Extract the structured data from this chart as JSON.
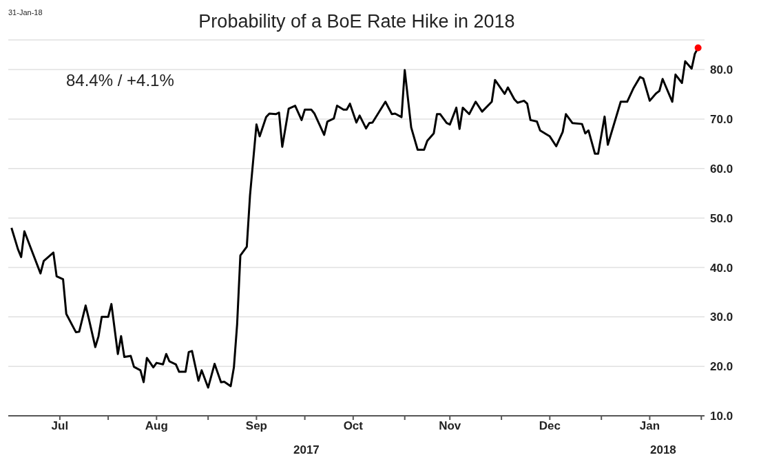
{
  "chart_data": {
    "type": "line",
    "title": "Probability of a BoE Rate Hike in 2018",
    "annotations": [
      "31-Jan-18",
      "84.4% / +4.1%",
      "2017",
      "2018"
    ],
    "xlim": [
      "2017-07-01",
      "2018-02-02"
    ],
    "xticks": [
      {
        "value": "2017-07-17",
        "label": "Jul"
      },
      {
        "value": "2017-08-01",
        "label": null
      },
      {
        "value": "2017-08-16",
        "label": "Aug"
      },
      {
        "value": "2017-09-01",
        "label": null
      },
      {
        "value": "2017-09-16",
        "label": "Sep"
      },
      {
        "value": "2017-10-01",
        "label": null
      },
      {
        "value": "2017-10-16",
        "label": "Oct"
      },
      {
        "value": "2017-11-01",
        "label": null
      },
      {
        "value": "2017-11-15",
        "label": "Nov"
      },
      {
        "value": "2017-12-01",
        "label": null
      },
      {
        "value": "2017-12-16",
        "label": "Dec"
      },
      {
        "value": "2018-01-01",
        "label": null
      },
      {
        "value": "2018-01-16",
        "label": "Jan"
      },
      {
        "value": "2018-02-01",
        "label": null
      }
    ],
    "ylim": [
      10,
      86
    ],
    "yticks": [
      {
        "value": 10,
        "label": "10.0"
      },
      {
        "value": 20,
        "label": "20.0"
      },
      {
        "value": 30,
        "label": "30.0"
      },
      {
        "value": 40,
        "label": "40.0"
      },
      {
        "value": 50,
        "label": "50.0"
      },
      {
        "value": 60,
        "label": "60.0"
      },
      {
        "value": 70,
        "label": "70.0"
      },
      {
        "value": 80,
        "label": "80.0"
      }
    ],
    "grid": "y",
    "series": [
      {
        "color": "#000000",
        "x": [
          "2017-07-02",
          "2017-07-04",
          "2017-07-05",
          "2017-07-06",
          "2017-07-08",
          "2017-07-11",
          "2017-07-12",
          "2017-07-15",
          "2017-07-16",
          "2017-07-18",
          "2017-07-19",
          "2017-07-22",
          "2017-07-23",
          "2017-07-25",
          "2017-07-26",
          "2017-07-28",
          "2017-07-29",
          "2017-07-30",
          "2017-08-01",
          "2017-08-02",
          "2017-08-04",
          "2017-08-05",
          "2017-08-06",
          "2017-08-08",
          "2017-08-09",
          "2017-08-11",
          "2017-08-12",
          "2017-08-13",
          "2017-08-15",
          "2017-08-16",
          "2017-08-18",
          "2017-08-19",
          "2017-08-20",
          "2017-08-22",
          "2017-08-23",
          "2017-08-25",
          "2017-08-26",
          "2017-08-27",
          "2017-08-29",
          "2017-08-30",
          "2017-09-01",
          "2017-09-03",
          "2017-09-05",
          "2017-09-06",
          "2017-09-08",
          "2017-09-09",
          "2017-09-10",
          "2017-09-11",
          "2017-09-13",
          "2017-09-14",
          "2017-09-16",
          "2017-09-17",
          "2017-09-19",
          "2017-09-20",
          "2017-09-22",
          "2017-09-23",
          "2017-09-24",
          "2017-09-26",
          "2017-09-28",
          "2017-09-30",
          "2017-10-01",
          "2017-10-03",
          "2017-10-04",
          "2017-10-07",
          "2017-10-08",
          "2017-10-10",
          "2017-10-11",
          "2017-10-13",
          "2017-10-14",
          "2017-10-15",
          "2017-10-17",
          "2017-10-18",
          "2017-10-20",
          "2017-10-21",
          "2017-10-22",
          "2017-10-26",
          "2017-10-28",
          "2017-10-29",
          "2017-10-31",
          "2017-11-01",
          "2017-11-03",
          "2017-11-05",
          "2017-11-07",
          "2017-11-08",
          "2017-11-10",
          "2017-11-11",
          "2017-11-12",
          "2017-11-14",
          "2017-11-15",
          "2017-11-17",
          "2017-11-18",
          "2017-11-19",
          "2017-11-21",
          "2017-11-23",
          "2017-11-25",
          "2017-11-28",
          "2017-11-29",
          "2017-12-02",
          "2017-12-03",
          "2017-12-05",
          "2017-12-06",
          "2017-12-08",
          "2017-12-09",
          "2017-12-10",
          "2017-12-12",
          "2017-12-13",
          "2017-12-15",
          "2017-12-16",
          "2017-12-18",
          "2017-12-20",
          "2017-12-21",
          "2017-12-23",
          "2017-12-26",
          "2017-12-27",
          "2017-12-28",
          "2017-12-30",
          "2017-12-31",
          "2018-01-02",
          "2018-01-03",
          "2018-01-07",
          "2018-01-09",
          "2018-01-11",
          "2018-01-13",
          "2018-01-14",
          "2018-01-16",
          "2018-01-18",
          "2018-01-19",
          "2018-01-20",
          "2018-01-23",
          "2018-01-24",
          "2018-01-26",
          "2018-01-27",
          "2018-01-29",
          "2018-01-30",
          "2018-01-31"
        ],
        "values": [
          48.0,
          43.7,
          42.1,
          47.3,
          43.9,
          38.8,
          41.3,
          43.0,
          38.2,
          37.6,
          30.6,
          26.9,
          27.0,
          32.3,
          29.6,
          23.9,
          26.1,
          30.0,
          30.0,
          32.6,
          22.5,
          26.1,
          21.9,
          22.1,
          19.9,
          19.2,
          16.8,
          21.7,
          19.8,
          20.7,
          20.4,
          22.5,
          21.0,
          20.4,
          18.9,
          18.9,
          22.9,
          23.1,
          17.1,
          19.2,
          15.7,
          20.5,
          16.8,
          16.9,
          16.0,
          19.8,
          28.5,
          42.4,
          44.2,
          54.6,
          68.9,
          66.5,
          70.4,
          71.1,
          71.0,
          71.3,
          64.4,
          72.1,
          72.7,
          69.8,
          71.9,
          71.9,
          71.1,
          66.8,
          69.5,
          70.1,
          72.7,
          71.9,
          71.9,
          73.1,
          69.3,
          70.7,
          68.1,
          69.2,
          69.3,
          73.5,
          71.0,
          71.1,
          70.4,
          79.9,
          68.3,
          63.8,
          63.8,
          65.6,
          67.1,
          71.0,
          71.0,
          69.2,
          68.9,
          72.3,
          68.0,
          72.3,
          71.0,
          73.5,
          71.5,
          73.5,
          77.9,
          75.1,
          76.4,
          74.0,
          73.3,
          73.7,
          73.1,
          69.8,
          69.5,
          67.7,
          66.9,
          66.5,
          64.5,
          67.4,
          71.0,
          69.2,
          69.0,
          67.1,
          67.7,
          63.0,
          63.0,
          70.5,
          64.8,
          73.5,
          73.5,
          76.3,
          78.5,
          78.2,
          73.7,
          75.2,
          75.7,
          78.1,
          73.5,
          79.0,
          77.3,
          81.7,
          80.2,
          83.2,
          84.4
        ]
      },
      {
        "type": "scatter",
        "color": "#ff0000",
        "marker": "circle",
        "x": [
          "2018-01-31"
        ],
        "values": [
          84.4
        ]
      }
    ]
  }
}
